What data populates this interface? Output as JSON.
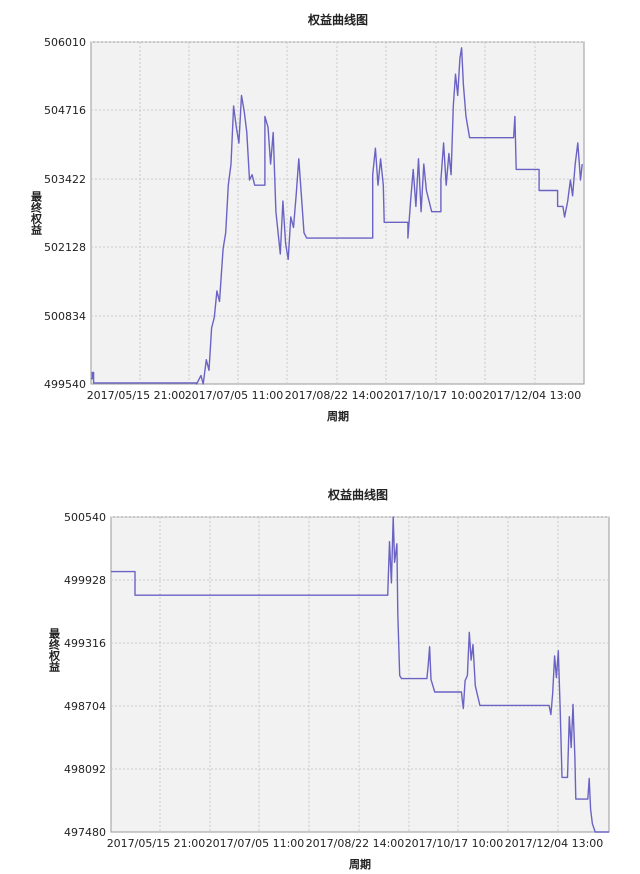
{
  "colors": {
    "line": "#6b63c4",
    "plot_bg": "#f2f2f2",
    "grid": "#c9c9c9",
    "axis": "#9a9a9a"
  },
  "chart_data": [
    {
      "type": "line",
      "title": "权益曲线图",
      "xlabel": "周期",
      "ylabel": "最终权益",
      "x_tick_labels": [
        "2017/05/15 21:00",
        "2017/07/05 11:00",
        "2017/08/22 14:00",
        "2017/10/17 10:00",
        "2017/12/04 13:00"
      ],
      "y_tick_labels": [
        "506010",
        "504716",
        "503422",
        "502128",
        "500834",
        "499540"
      ],
      "ylim": [
        499540,
        506010
      ],
      "grid": true,
      "series": [
        {
          "values": [
            [
              0.0,
              499640
            ],
            [
              0.3,
              499640
            ],
            [
              0.3,
              499760
            ],
            [
              0.6,
              499760
            ],
            [
              0.6,
              499560
            ],
            [
              24,
              499560
            ],
            [
              24,
              499460
            ],
            [
              25,
              499700
            ],
            [
              25.5,
              499440
            ],
            [
              26.2,
              500000
            ],
            [
              26.8,
              499800
            ],
            [
              27.4,
              500600
            ],
            [
              28,
              500800
            ],
            [
              28.6,
              501300
            ],
            [
              29.2,
              501100
            ],
            [
              30,
              502100
            ],
            [
              30.6,
              502400
            ],
            [
              31.2,
              503300
            ],
            [
              31.8,
              503700
            ],
            [
              32.4,
              504800
            ],
            [
              33,
              504400
            ],
            [
              33.6,
              504100
            ],
            [
              34.2,
              505000
            ],
            [
              34.8,
              504700
            ],
            [
              35.4,
              504300
            ],
            [
              36,
              503400
            ],
            [
              36.6,
              503500
            ],
            [
              37.2,
              503300
            ],
            [
              39.5,
              503300
            ],
            [
              39.5,
              504600
            ],
            [
              40.2,
              504400
            ],
            [
              40.8,
              503700
            ],
            [
              41.4,
              504300
            ],
            [
              42,
              502800
            ],
            [
              43,
              502000
            ],
            [
              43.6,
              503000
            ],
            [
              44.2,
              502200
            ],
            [
              44.8,
              501900
            ],
            [
              45.4,
              502700
            ],
            [
              46,
              502500
            ],
            [
              46.6,
              503100
            ],
            [
              47.2,
              503800
            ],
            [
              47.8,
              503100
            ],
            [
              48.4,
              502400
            ],
            [
              49,
              502300
            ],
            [
              49,
              502300
            ],
            [
              64,
              502300
            ],
            [
              64,
              503500
            ],
            [
              64.6,
              504000
            ],
            [
              65.2,
              503300
            ],
            [
              65.8,
              503800
            ],
            [
              66.4,
              503300
            ],
            [
              66.6,
              502600
            ],
            [
              72,
              502600
            ],
            [
              72,
              502300
            ],
            [
              72.6,
              503000
            ],
            [
              73.2,
              503600
            ],
            [
              73.8,
              502900
            ],
            [
              74.4,
              503800
            ],
            [
              75,
              502800
            ],
            [
              75.6,
              503700
            ],
            [
              76.2,
              503200
            ],
            [
              77.4,
              502800
            ],
            [
              79.5,
              502800
            ],
            [
              79.5,
              503400
            ],
            [
              80.1,
              504100
            ],
            [
              80.7,
              503300
            ],
            [
              81.3,
              503900
            ],
            [
              81.8,
              503500
            ],
            [
              82.3,
              504800
            ],
            [
              82.8,
              505400
            ],
            [
              83.3,
              505000
            ],
            [
              83.8,
              505700
            ],
            [
              84.2,
              505900
            ],
            [
              84.6,
              505200
            ],
            [
              85.2,
              504600
            ],
            [
              86,
              504200
            ],
            [
              96,
              504200
            ],
            [
              96.3,
              504600
            ],
            [
              96.6,
              503600
            ],
            [
              100,
              503600
            ],
            [
              100,
              503600
            ],
            [
              101.8,
              503600
            ],
            [
              101.8,
              503200
            ],
            [
              106,
              503200
            ],
            [
              106,
              502900
            ],
            [
              107.2,
              502900
            ],
            [
              107.6,
              502700
            ],
            [
              108.3,
              503000
            ],
            [
              108.9,
              503400
            ],
            [
              109.4,
              503100
            ],
            [
              110,
              503700
            ],
            [
              110.6,
              504100
            ],
            [
              111.2,
              503400
            ],
            [
              111.6,
              503700
            ]
          ]
        }
      ]
    },
    {
      "type": "line",
      "title": "权益曲线图",
      "xlabel": "周期",
      "ylabel": "最终权益",
      "x_tick_labels": [
        "2017/05/15 21:00",
        "2017/07/05 11:00",
        "2017/08/22 14:00",
        "2017/10/17 10:00",
        "2017/12/04 13:00"
      ],
      "y_tick_labels": [
        "500540",
        "499928",
        "499316",
        "498704",
        "498092",
        "497480"
      ],
      "ylim": [
        497480,
        500540
      ],
      "grid": true,
      "series": [
        {
          "values": [
            [
              0.0,
              500010
            ],
            [
              5.2,
              500010
            ],
            [
              5.2,
              499780
            ],
            [
              60,
              499780
            ],
            [
              60.4,
              500300
            ],
            [
              60.8,
              499900
            ],
            [
              61.2,
              500550
            ],
            [
              61.5,
              500100
            ],
            [
              62,
              500280
            ],
            [
              62.2,
              499600
            ],
            [
              62.6,
              499000
            ],
            [
              63,
              498970
            ],
            [
              68.5,
              498970
            ],
            [
              68.8,
              499100
            ],
            [
              69.1,
              499280
            ],
            [
              69.4,
              498960
            ],
            [
              69.8,
              498900
            ],
            [
              70.2,
              498840
            ],
            [
              76,
              498840
            ],
            [
              76.4,
              498680
            ],
            [
              76.8,
              498950
            ],
            [
              77.3,
              499000
            ],
            [
              77.7,
              499420
            ],
            [
              78.1,
              499150
            ],
            [
              78.5,
              499300
            ],
            [
              79,
              498900
            ],
            [
              80,
              498710
            ],
            [
              95,
              498710
            ],
            [
              95.4,
              498620
            ],
            [
              95.8,
              498830
            ],
            [
              96.2,
              499190
            ],
            [
              96.6,
              498980
            ],
            [
              97,
              499240
            ],
            [
              97.4,
              498700
            ],
            [
              97.8,
              498010
            ],
            [
              99,
              498010
            ],
            [
              99.4,
              498600
            ],
            [
              99.8,
              498300
            ],
            [
              100.2,
              498720
            ],
            [
              100.6,
              498200
            ],
            [
              100.8,
              497800
            ],
            [
              103.4,
              497800
            ],
            [
              103.7,
              498000
            ],
            [
              104,
              497700
            ],
            [
              104.4,
              497560
            ],
            [
              105,
              497480
            ],
            [
              108,
              497480
            ]
          ]
        }
      ]
    }
  ]
}
